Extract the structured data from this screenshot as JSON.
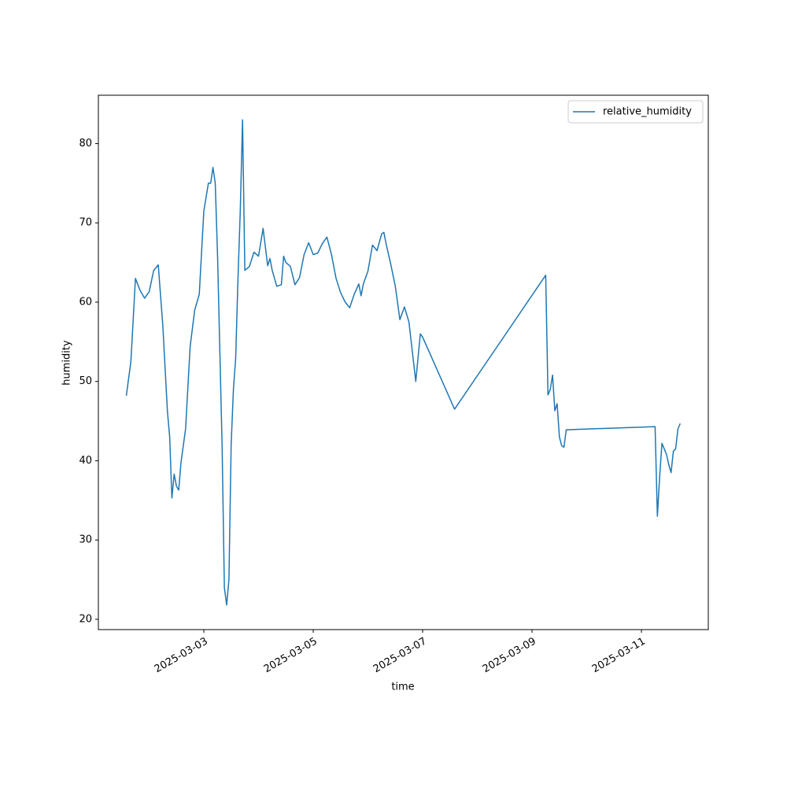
{
  "chart_data": {
    "type": "line",
    "xlabel": "time",
    "ylabel": "humidity",
    "x": [
      "2025-03-01 14:00",
      "2025-03-01 16:00",
      "2025-03-01 18:00",
      "2025-03-01 20:00",
      "2025-03-01 22:00",
      "2025-03-02 00:00",
      "2025-03-02 02:00",
      "2025-03-02 04:00",
      "2025-03-02 06:00",
      "2025-03-02 08:00",
      "2025-03-02 09:00",
      "2025-03-02 10:00",
      "2025-03-02 11:00",
      "2025-03-02 12:00",
      "2025-03-02 13:00",
      "2025-03-02 14:00",
      "2025-03-02 16:00",
      "2025-03-02 18:00",
      "2025-03-02 20:00",
      "2025-03-02 22:00",
      "2025-03-03 00:00",
      "2025-03-03 02:00",
      "2025-03-03 03:00",
      "2025-03-03 04:00",
      "2025-03-03 05:00",
      "2025-03-03 06:00",
      "2025-03-03 08:00",
      "2025-03-03 09:00",
      "2025-03-03 10:00",
      "2025-03-03 11:00",
      "2025-03-03 12:00",
      "2025-03-03 13:00",
      "2025-03-03 14:00",
      "2025-03-03 15:00",
      "2025-03-03 16:00",
      "2025-03-03 17:00",
      "2025-03-03 18:00",
      "2025-03-03 20:00",
      "2025-03-03 22:00",
      "2025-03-04 00:00",
      "2025-03-04 02:00",
      "2025-03-04 04:00",
      "2025-03-04 05:00",
      "2025-03-04 06:00",
      "2025-03-04 08:00",
      "2025-03-04 10:00",
      "2025-03-04 11:00",
      "2025-03-04 12:00",
      "2025-03-04 14:00",
      "2025-03-04 16:00",
      "2025-03-04 18:00",
      "2025-03-04 20:00",
      "2025-03-04 22:00",
      "2025-03-05 00:00",
      "2025-03-05 02:00",
      "2025-03-05 04:00",
      "2025-03-05 06:00",
      "2025-03-05 08:00",
      "2025-03-05 10:00",
      "2025-03-05 12:00",
      "2025-03-05 14:00",
      "2025-03-05 16:00",
      "2025-03-05 18:00",
      "2025-03-05 20:00",
      "2025-03-05 21:00",
      "2025-03-05 22:00",
      "2025-03-06 00:00",
      "2025-03-06 02:00",
      "2025-03-06 04:00",
      "2025-03-06 06:00",
      "2025-03-06 07:00",
      "2025-03-06 08:00",
      "2025-03-06 10:00",
      "2025-03-06 12:00",
      "2025-03-06 14:00",
      "2025-03-06 16:00",
      "2025-03-06 18:00",
      "2025-03-06 20:00",
      "2025-03-06 21:00",
      "2025-03-06 23:00",
      "2025-03-07 00:00",
      "2025-03-07 14:00",
      "2025-03-09 06:00",
      "2025-03-09 07:00",
      "2025-03-09 08:00",
      "2025-03-09 09:00",
      "2025-03-09 10:00",
      "2025-03-09 11:00",
      "2025-03-09 12:00",
      "2025-03-09 13:00",
      "2025-03-09 14:00",
      "2025-03-09 15:00",
      "2025-03-11 06:00",
      "2025-03-11 07:00",
      "2025-03-11 08:00",
      "2025-03-11 09:00",
      "2025-03-11 10:00",
      "2025-03-11 11:00",
      "2025-03-11 12:00",
      "2025-03-11 13:00",
      "2025-03-11 14:00",
      "2025-03-11 15:00",
      "2025-03-11 16:00",
      "2025-03-11 17:00"
    ],
    "series": [
      {
        "name": "relative_humidity",
        "color": "#1f77b4",
        "values": [
          48.2,
          52.5,
          63,
          61.5,
          60.5,
          61.3,
          64,
          64.7,
          57,
          46.3,
          43,
          35.3,
          38.3,
          36.8,
          36.3,
          39.8,
          44,
          54.4,
          59,
          61,
          71.5,
          75,
          75,
          77,
          75,
          66,
          42,
          24,
          21.8,
          25,
          42,
          49,
          53,
          63,
          71.5,
          83,
          64,
          64.5,
          66.3,
          65.8,
          69.3,
          64.6,
          65.5,
          64,
          62,
          62.2,
          65.8,
          65,
          64.5,
          62.2,
          63.1,
          66,
          67.5,
          66,
          66.2,
          67.4,
          68.2,
          66,
          63,
          61.2,
          60,
          59.3,
          61,
          62.3,
          60.8,
          62.3,
          63.9,
          67.2,
          66.5,
          68.6,
          68.8,
          67.3,
          64.8,
          62,
          57.8,
          59.4,
          57.5,
          52.5,
          50,
          56,
          55.6,
          46.5,
          63.4,
          48.3,
          49,
          50.8,
          46.3,
          47.2,
          43,
          41.9,
          41.7,
          43.9,
          44.3,
          33,
          38,
          42.2,
          41.5,
          40.8,
          39.5,
          38.5,
          41.2,
          41.5,
          44,
          44.7
        ]
      }
    ],
    "xlim": [
      "2025-03-01 01:44",
      "2025-03-12 05:20"
    ],
    "xticks": [
      "2025-03-03",
      "2025-03-05",
      "2025-03-07",
      "2025-03-09",
      "2025-03-11"
    ],
    "ylim": [
      18.7,
      86.1
    ],
    "yticks": [
      20,
      30,
      40,
      50,
      60,
      70,
      80
    ],
    "legend": "upper right"
  }
}
